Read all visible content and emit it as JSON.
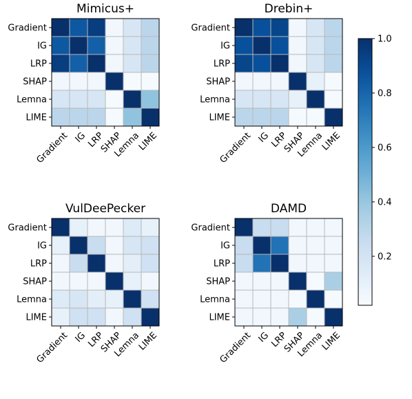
{
  "chart_data": [
    {
      "type": "heatmap",
      "title": "Mimicus+",
      "rows": [
        "Gradient",
        "IG",
        "LRP",
        "SHAP",
        "Lemna",
        "LIME"
      ],
      "cols": [
        "Gradient",
        "IG",
        "LRP",
        "SHAP",
        "Lemna",
        "LIME"
      ],
      "values": [
        [
          1.0,
          0.85,
          0.95,
          0.05,
          0.18,
          0.3
        ],
        [
          0.85,
          1.0,
          0.82,
          0.05,
          0.18,
          0.3
        ],
        [
          0.95,
          0.82,
          1.0,
          0.05,
          0.18,
          0.3
        ],
        [
          0.05,
          0.05,
          0.05,
          1.0,
          0.03,
          0.03
        ],
        [
          0.18,
          0.18,
          0.18,
          0.03,
          1.0,
          0.42
        ],
        [
          0.3,
          0.3,
          0.3,
          0.03,
          0.42,
          1.0
        ]
      ]
    },
    {
      "type": "heatmap",
      "title": "Drebin+",
      "rows": [
        "Gradient",
        "IG",
        "LRP",
        "SHAP",
        "Lemna",
        "LIME"
      ],
      "cols": [
        "Gradient",
        "IG",
        "LRP",
        "SHAP",
        "Lemna",
        "LIME"
      ],
      "values": [
        [
          1.0,
          0.88,
          0.92,
          0.05,
          0.18,
          0.3
        ],
        [
          0.88,
          1.0,
          0.88,
          0.05,
          0.18,
          0.3
        ],
        [
          0.92,
          0.88,
          1.0,
          0.05,
          0.18,
          0.3
        ],
        [
          0.05,
          0.05,
          0.05,
          1.0,
          0.1,
          0.03
        ],
        [
          0.18,
          0.18,
          0.18,
          0.1,
          1.0,
          0.03
        ],
        [
          0.3,
          0.3,
          0.3,
          0.03,
          0.03,
          1.0
        ]
      ]
    },
    {
      "type": "heatmap",
      "title": "VulDeePecker",
      "rows": [
        "Gradient",
        "IG",
        "LRP",
        "SHAP",
        "Lemna",
        "LIME"
      ],
      "cols": [
        "Gradient",
        "IG",
        "LRP",
        "SHAP",
        "Lemna",
        "LIME"
      ],
      "values": [
        [
          1.0,
          0.1,
          0.05,
          0.05,
          0.15,
          0.1
        ],
        [
          0.1,
          1.0,
          0.25,
          0.05,
          0.18,
          0.22
        ],
        [
          0.05,
          0.25,
          1.0,
          0.05,
          0.12,
          0.22
        ],
        [
          0.05,
          0.05,
          0.05,
          1.0,
          0.1,
          0.05
        ],
        [
          0.15,
          0.18,
          0.12,
          0.1,
          1.0,
          0.22
        ],
        [
          0.1,
          0.22,
          0.22,
          0.05,
          0.22,
          1.0
        ]
      ]
    },
    {
      "type": "heatmap",
      "title": "DAMD",
      "rows": [
        "Gradient",
        "IG",
        "LRP",
        "SHAP",
        "Lemna",
        "LIME"
      ],
      "cols": [
        "Gradient",
        "IG",
        "LRP",
        "SHAP",
        "Lemna",
        "LIME"
      ],
      "values": [
        [
          1.0,
          0.25,
          0.25,
          0.05,
          0.05,
          0.05
        ],
        [
          0.25,
          1.0,
          0.75,
          0.05,
          0.05,
          0.05
        ],
        [
          0.25,
          0.75,
          1.0,
          0.05,
          0.05,
          0.05
        ],
        [
          0.05,
          0.05,
          0.05,
          1.0,
          0.03,
          0.35
        ],
        [
          0.05,
          0.05,
          0.05,
          0.03,
          1.0,
          0.03
        ],
        [
          0.05,
          0.05,
          0.05,
          0.35,
          0.03,
          1.0
        ]
      ]
    }
  ],
  "colorbar": {
    "cmap": "Blues",
    "range": [
      0.02,
      1.0
    ],
    "ticks": [
      {
        "value": 0.2,
        "label": "0.2"
      },
      {
        "value": 0.4,
        "label": "0.4"
      },
      {
        "value": 0.6,
        "label": "0.6"
      },
      {
        "value": 0.8,
        "label": "0.8"
      },
      {
        "value": 1.0,
        "label": "1.0"
      }
    ]
  },
  "colors": {
    "grid": "#b8b8b8",
    "frame": "#000000"
  }
}
